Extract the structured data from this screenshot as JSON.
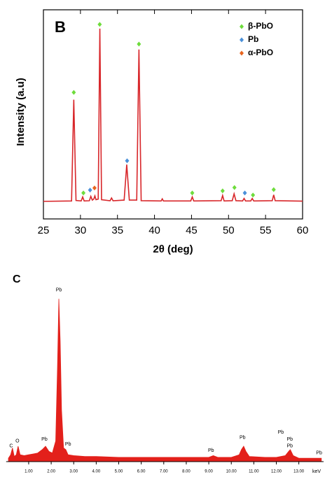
{
  "chart_data": [
    {
      "type": "line",
      "panel": "B",
      "x_label": "2θ (deg)",
      "y_label": "Intensity (a.u)",
      "xlim": [
        25,
        60
      ],
      "xticks": [
        25,
        30,
        35,
        40,
        45,
        50,
        55,
        60
      ],
      "ylim": [
        0,
        100
      ],
      "legend": "upper right",
      "color": "#d8262a",
      "x": [
        25,
        28.8,
        29.1,
        29.4,
        30.1,
        30.3,
        30.5,
        31.2,
        31.4,
        31.6,
        31.8,
        31.95,
        32.1,
        32.4,
        32.62,
        32.85,
        34,
        34.2,
        34.4,
        35.9,
        36.25,
        36.6,
        37.6,
        37.9,
        38.2,
        40.9,
        41.05,
        41.2,
        44.9,
        45.1,
        45.3,
        49,
        49.2,
        49.4,
        50.5,
        50.75,
        51,
        51.9,
        52.1,
        52.3,
        53,
        53.2,
        53.4,
        55.9,
        56.1,
        56.3,
        60
      ],
      "values": [
        8.4,
        8.6,
        57,
        8.8,
        8.6,
        10.5,
        8.6,
        8.7,
        10.8,
        9,
        9.5,
        11,
        9.2,
        9.5,
        91,
        9.2,
        8.7,
        10,
        8.7,
        9,
        26,
        9,
        9,
        81,
        8.7,
        8.6,
        9.6,
        8.6,
        8.6,
        10.5,
        8.6,
        8.7,
        11.2,
        8.6,
        8.7,
        12,
        8.7,
        8.6,
        9.8,
        8.6,
        8.6,
        9.8,
        8.6,
        8.7,
        11.5,
        8.7,
        8.5
      ],
      "series": [
        {
          "name": "β-PbO",
          "color": "#6edc3c",
          "x": [
            29.1,
            30.4,
            32.6,
            37.9,
            45.1,
            49.2,
            50.8,
            53.3,
            56.1
          ],
          "values": [
            60.5,
            12.4,
            93,
            83.6,
            12.4,
            13.4,
            15,
            11.4,
            14
          ]
        },
        {
          "name": "Pb",
          "color": "#4a90d9",
          "x": [
            31.3,
            36.3,
            52.2
          ],
          "values": [
            13.8,
            27.8,
            12.4
          ]
        },
        {
          "name": "α-PbO",
          "color": "#e8641e",
          "x": [
            31.9
          ],
          "values": [
            14.8
          ]
        }
      ]
    },
    {
      "type": "area",
      "panel": "C",
      "x_label": "keV",
      "color": "#e3201b",
      "xlim": [
        0,
        14.1
      ],
      "ylim": [
        0,
        100
      ],
      "xticks": [
        {
          "value": 1,
          "label": "1.00"
        },
        {
          "value": 2,
          "label": "2.00"
        },
        {
          "value": 3,
          "label": "3.00"
        },
        {
          "value": 4,
          "label": "4.00"
        },
        {
          "value": 5,
          "label": "5.00"
        },
        {
          "value": 6,
          "label": "6.00"
        },
        {
          "value": 7,
          "label": "7.00"
        },
        {
          "value": 8,
          "label": "8.00"
        },
        {
          "value": 9,
          "label": "9.00"
        },
        {
          "value": 10,
          "label": "10.00"
        },
        {
          "value": 11,
          "label": "11.00"
        },
        {
          "value": 12,
          "label": "12.00"
        },
        {
          "value": 13,
          "label": "13.00"
        }
      ],
      "x": [
        0.1,
        0.2,
        0.28,
        0.36,
        0.45,
        0.53,
        0.62,
        0.8,
        1.0,
        1.2,
        1.4,
        1.6,
        1.75,
        1.9,
        2.05,
        2.2,
        2.28,
        2.34,
        2.4,
        2.46,
        2.55,
        2.65,
        2.75,
        3,
        3.5,
        4,
        5,
        6,
        7,
        8,
        9,
        9.2,
        9.4,
        10,
        10.35,
        10.45,
        10.55,
        10.65,
        10.8,
        11.5,
        12,
        12.4,
        12.55,
        12.62,
        12.75,
        13,
        14
      ],
      "values": [
        2,
        4,
        8,
        3,
        4,
        9,
        4,
        3.5,
        4,
        4.5,
        5,
        7,
        9,
        6,
        5,
        12,
        55,
        95,
        70,
        30,
        8,
        7,
        4,
        3.5,
        3,
        3,
        2.5,
        2.5,
        2.5,
        2.5,
        2.5,
        3.5,
        2.5,
        2.5,
        4,
        7,
        9,
        6,
        3,
        2.5,
        2.5,
        3.5,
        6,
        7,
        3.5,
        2,
        2
      ],
      "annotations": [
        {
          "text": "C",
          "x": 0.22,
          "y": 7
        },
        {
          "text": "O",
          "x": 0.5,
          "y": 10
        },
        {
          "text": "Pb",
          "x": 1.7,
          "y": 11
        },
        {
          "text": "Pb",
          "x": 2.34,
          "y": 98
        },
        {
          "text": "Pb",
          "x": 2.75,
          "y": 8
        },
        {
          "text": "Pb",
          "x": 9.1,
          "y": 4.5
        },
        {
          "text": "Pb",
          "x": 10.5,
          "y": 12
        },
        {
          "text": "Pb",
          "x": 12.2,
          "y": 15
        },
        {
          "text": "Pb",
          "x": 12.6,
          "y": 11
        },
        {
          "text": "Pb",
          "x": 12.6,
          "y": 7
        },
        {
          "text": "Pb",
          "x": 13.9,
          "y": 3
        }
      ]
    }
  ]
}
